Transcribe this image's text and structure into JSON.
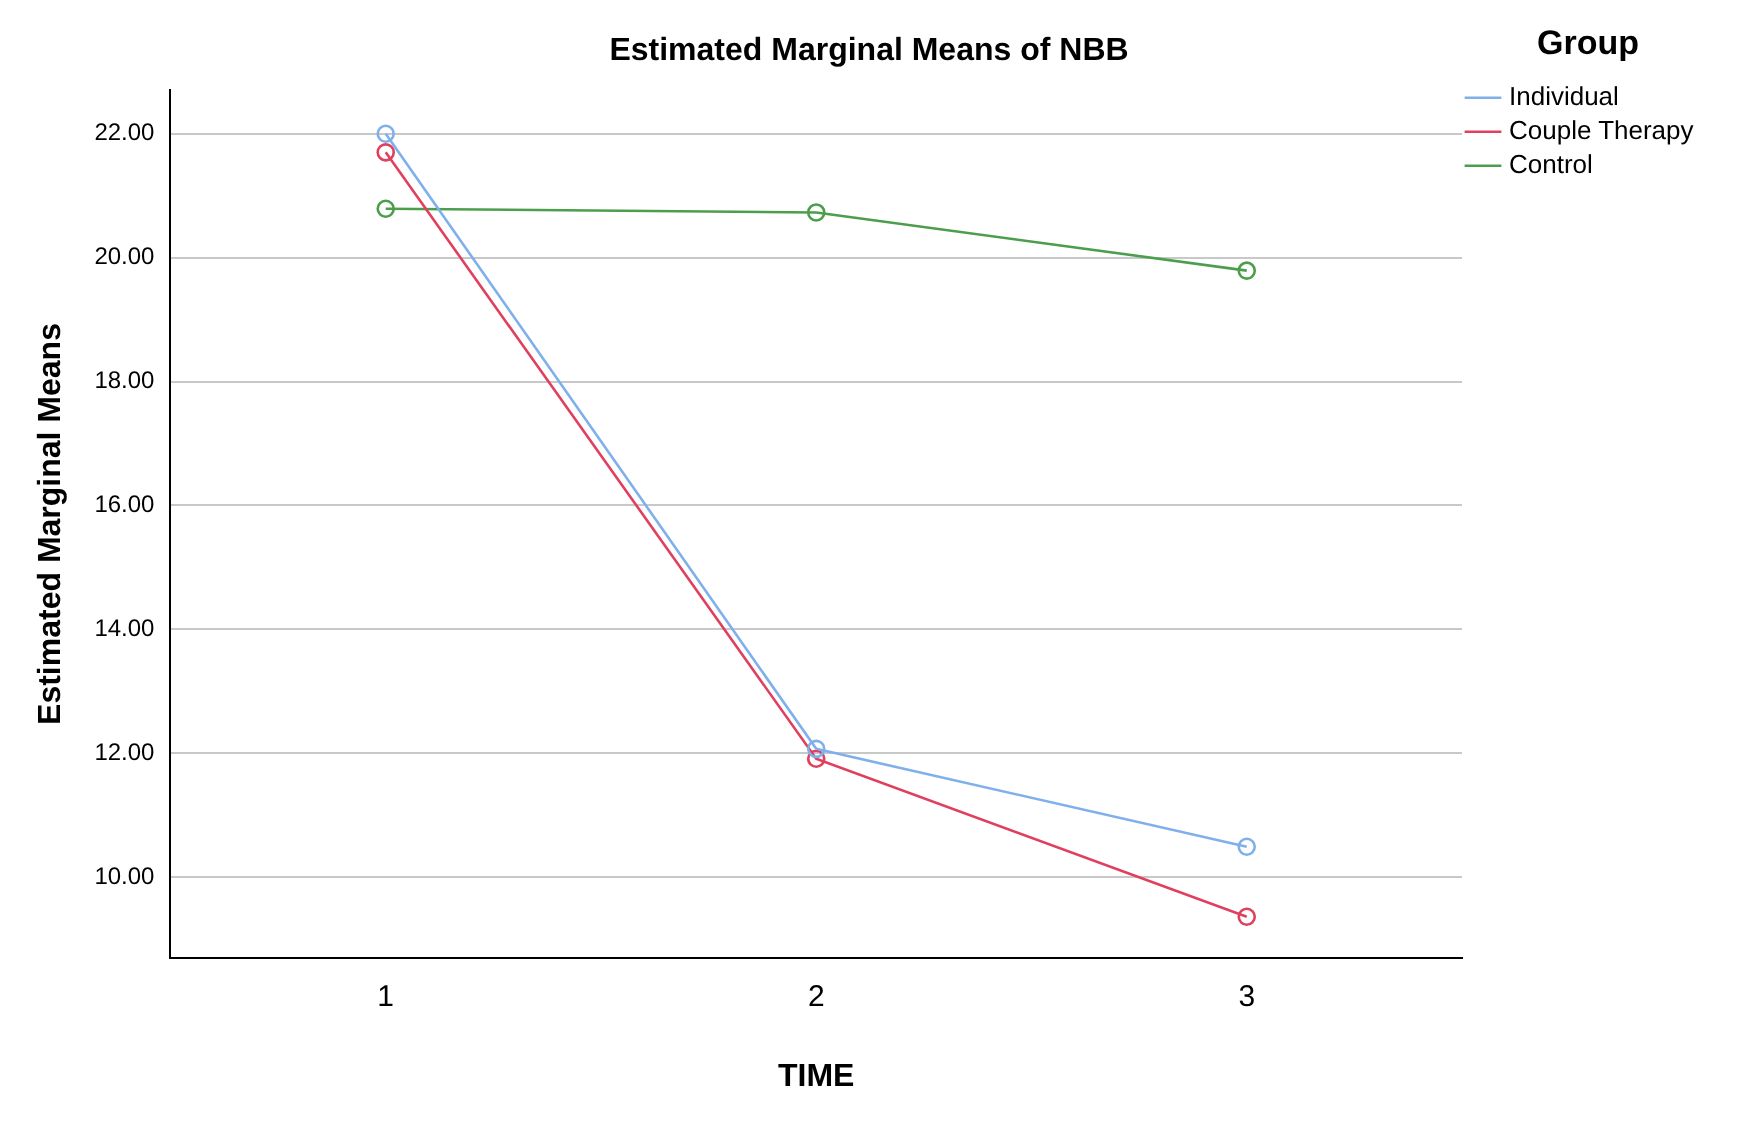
{
  "chart_data": {
    "type": "line",
    "title": "Estimated Marginal Means of NBB",
    "xlabel": "TIME",
    "ylabel": "Estimated Marginal Means",
    "legend_title": "Group",
    "categories": [
      "1",
      "2",
      "3"
    ],
    "series": [
      {
        "name": "Individual",
        "color": "#7fb0ec",
        "values": [
          22.0,
          12.07,
          10.49
        ]
      },
      {
        "name": "Couple Therapy",
        "color": "#e0405e",
        "values": [
          21.7,
          11.91,
          9.36
        ]
      },
      {
        "name": "Control",
        "color": "#4c9e4c",
        "values": [
          20.79,
          20.73,
          19.79
        ]
      }
    ],
    "ylim": [
      8.7,
      22.7
    ],
    "yticks": [
      {
        "value": 10,
        "label": "10.00"
      },
      {
        "value": 12,
        "label": "12.00"
      },
      {
        "value": 14,
        "label": "14.00"
      },
      {
        "value": 16,
        "label": "16.00"
      },
      {
        "value": 18,
        "label": "18.00"
      },
      {
        "value": 20,
        "label": "20.00"
      },
      {
        "value": 22,
        "label": "22.00"
      }
    ],
    "grid": "y",
    "legend": "top right",
    "marker": "circle",
    "line_style": "solid"
  }
}
